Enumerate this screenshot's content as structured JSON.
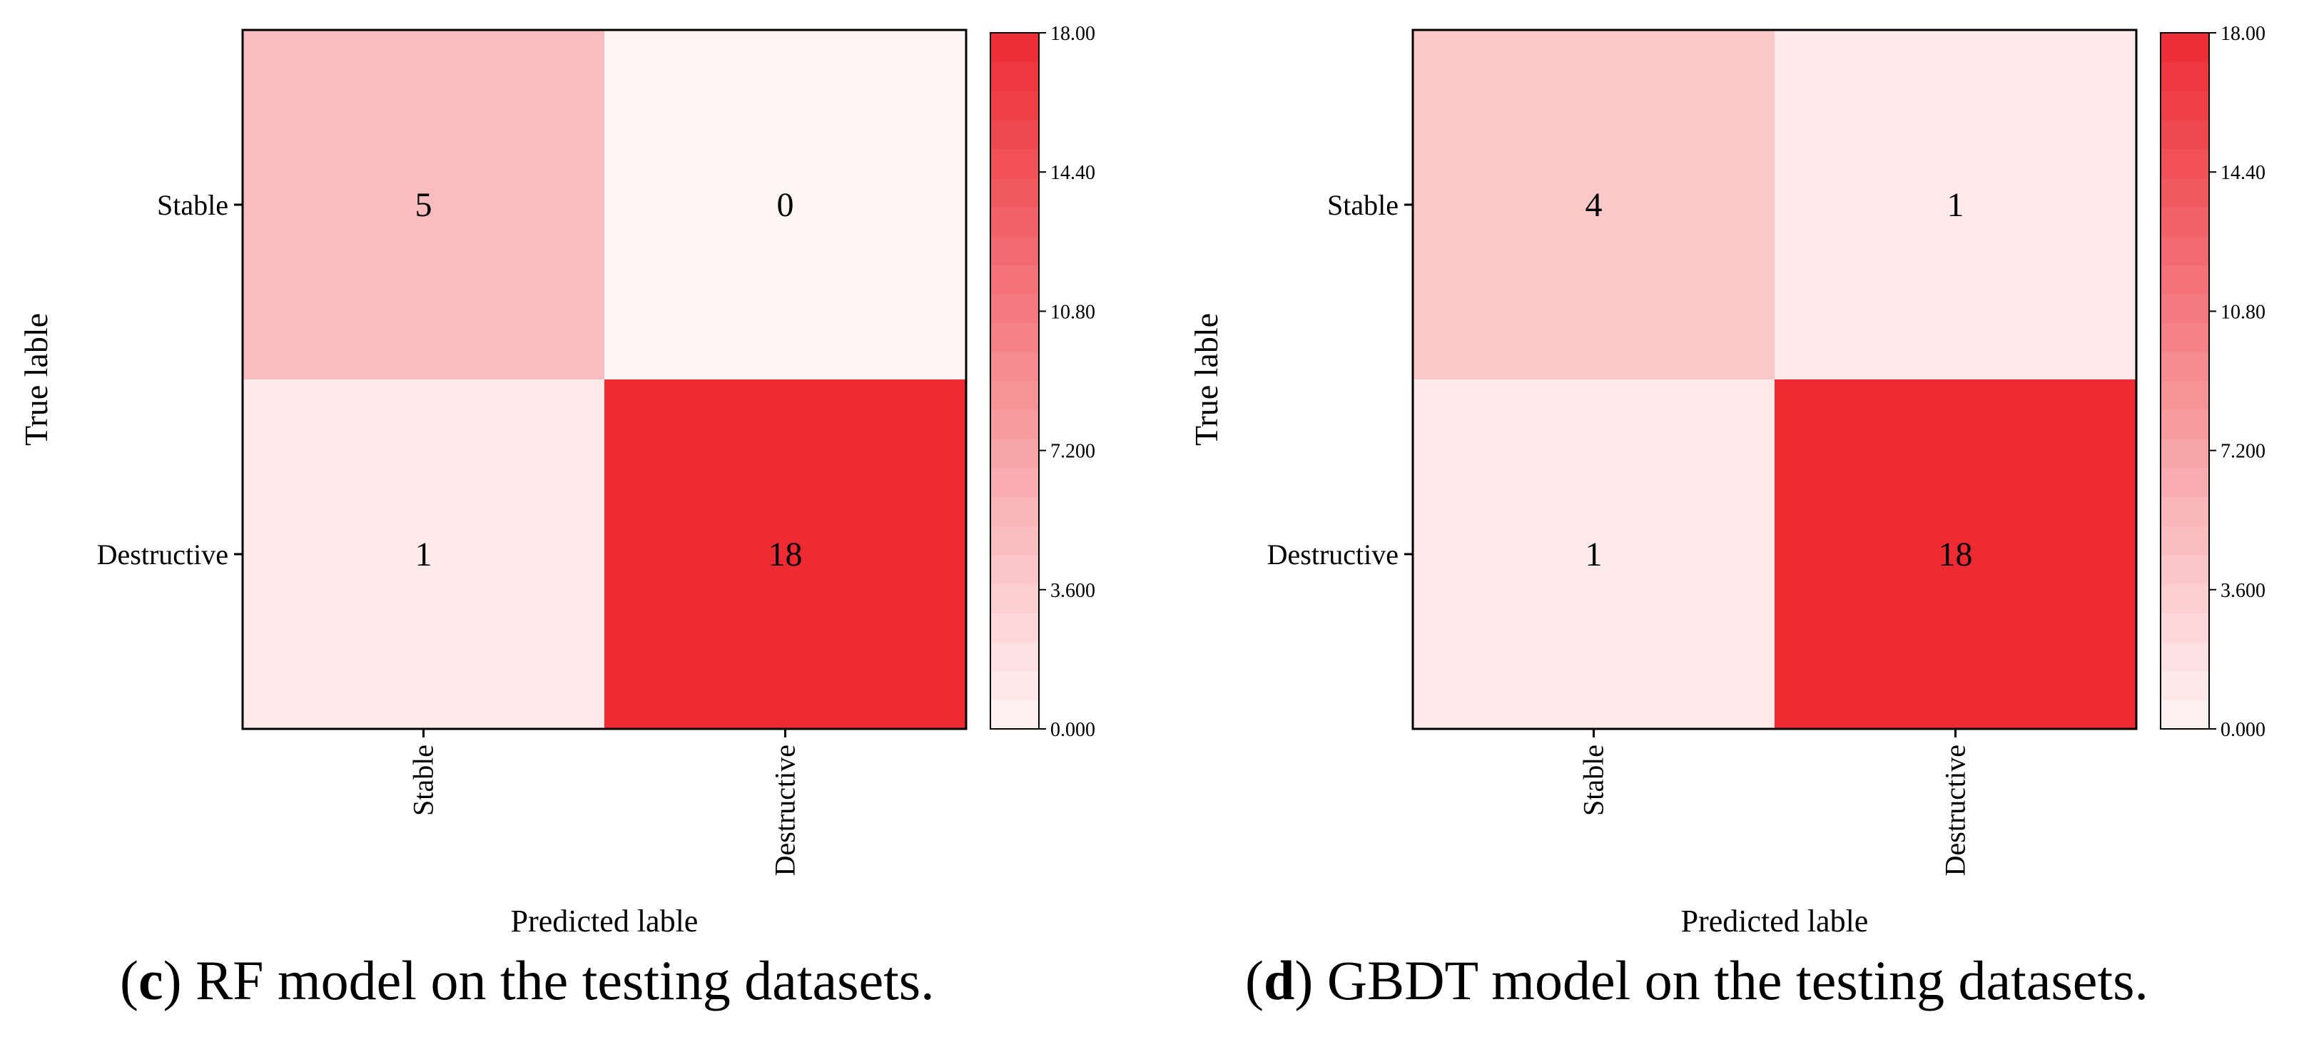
{
  "chart_data": [
    {
      "type": "heatmap",
      "caption_letter": "c",
      "caption_text": ") RF model on the testing datasets.",
      "xlabel": "Predicted lable",
      "ylabel": "True lable",
      "x_categories": [
        "Stable",
        "Destructive"
      ],
      "y_categories": [
        "Stable",
        "Destructive"
      ],
      "values": [
        [
          5,
          0
        ],
        [
          1,
          18
        ]
      ],
      "colorbar": {
        "min": 0,
        "max": 18,
        "tick_values": [
          0,
          3.6,
          7.2,
          10.8,
          14.4,
          18
        ],
        "tick_labels": [
          "0.000",
          "3.600",
          "7.200",
          "10.80",
          "14.40",
          "18.00"
        ]
      }
    },
    {
      "type": "heatmap",
      "caption_letter": "d",
      "caption_text": ") GBDT model on the testing datasets.",
      "xlabel": "Predicted lable",
      "ylabel": "True lable",
      "x_categories": [
        "Stable",
        "Destructive"
      ],
      "y_categories": [
        "Stable",
        "Destructive"
      ],
      "values": [
        [
          4,
          1
        ],
        [
          1,
          18
        ]
      ],
      "colorbar": {
        "min": 0,
        "max": 18,
        "tick_values": [
          0,
          3.6,
          7.2,
          10.8,
          14.4,
          18
        ],
        "tick_labels": [
          "0.000",
          "3.600",
          "7.200",
          "10.80",
          "14.40",
          "18.00"
        ]
      }
    }
  ],
  "colors": {
    "low": "#fff5f5",
    "high": "#ee2a33",
    "axis": "#000000"
  }
}
